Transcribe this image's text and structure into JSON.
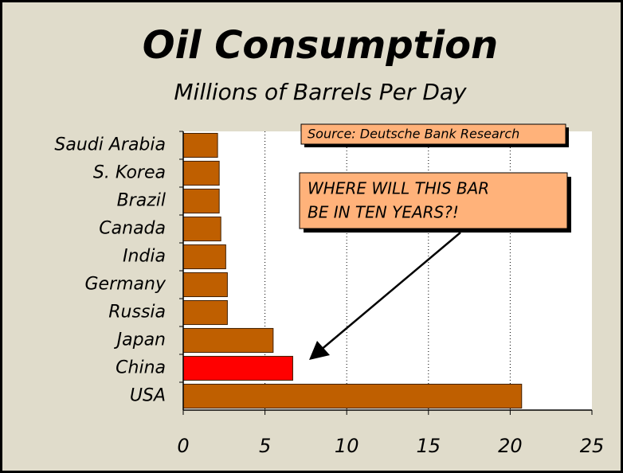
{
  "chart_data": {
    "type": "barh",
    "title": "Oil Consumption",
    "subtitle": "Millions of Barrels Per Day",
    "categories": [
      "Saudi Arabia",
      "S. Korea",
      "Brazil",
      "Canada",
      "India",
      "Germany",
      "Russia",
      "Japan",
      "China",
      "USA"
    ],
    "values": [
      2.1,
      2.2,
      2.2,
      2.3,
      2.6,
      2.7,
      2.7,
      5.5,
      6.7,
      20.7
    ],
    "colors": [
      "#bf5f00",
      "#bf5f00",
      "#bf5f00",
      "#bf5f00",
      "#bf5f00",
      "#bf5f00",
      "#bf5f00",
      "#bf5f00",
      "#ff0000",
      "#bf5f00"
    ],
    "xlim": [
      0,
      25
    ],
    "xticks": [
      0,
      5,
      10,
      15,
      20,
      25
    ],
    "grid": true,
    "annotations": [
      "Source: Deutsche Bank Research",
      "WHERE WILL THIS BAR",
      "BE IN TEN YEARS?!"
    ]
  }
}
